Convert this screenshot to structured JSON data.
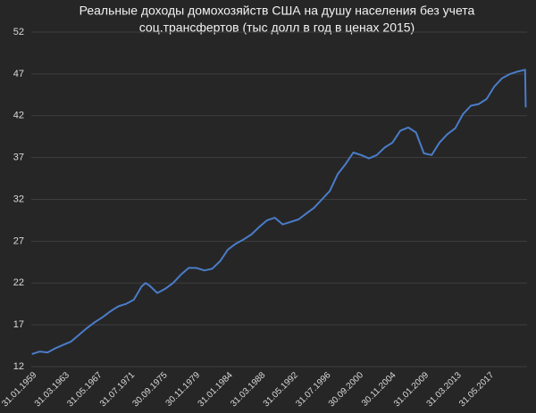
{
  "chart_data": {
    "type": "line",
    "title": [
      "Реальные доходы домохозяйств США на душу населения без учета",
      "соц.трансфертов (тыс долл в год в ценах 2015)"
    ],
    "x": [
      "1959-01",
      "1960-01",
      "1961-01",
      "1962-01",
      "1963-01",
      "1964-01",
      "1965-01",
      "1966-01",
      "1967-01",
      "1968-01",
      "1969-01",
      "1970-01",
      "1971-01",
      "1972-01",
      "1973-01",
      "1973-07",
      "1974-01",
      "1975-01",
      "1976-01",
      "1977-01",
      "1978-01",
      "1979-01",
      "1980-01",
      "1981-01",
      "1982-01",
      "1983-01",
      "1984-01",
      "1985-01",
      "1986-01",
      "1987-01",
      "1988-01",
      "1989-01",
      "1990-01",
      "1991-01",
      "1992-01",
      "1993-01",
      "1994-01",
      "1995-01",
      "1996-01",
      "1997-01",
      "1998-01",
      "1999-01",
      "2000-01",
      "2001-01",
      "2002-01",
      "2003-01",
      "2004-01",
      "2005-01",
      "2006-01",
      "2007-01",
      "2008-01",
      "2009-01",
      "2010-01",
      "2011-01",
      "2012-01",
      "2013-01",
      "2014-01",
      "2015-01",
      "2016-01",
      "2017-01",
      "2018-01",
      "2019-01",
      "2020-01",
      "2021-01",
      "2021-12",
      "2022-01"
    ],
    "series": [
      {
        "name": "Реальные доходы",
        "color": "#4a7cc9",
        "values": [
          13.5,
          13.8,
          13.7,
          14.2,
          14.6,
          15.0,
          15.8,
          16.6,
          17.3,
          17.9,
          18.6,
          19.2,
          19.5,
          20.0,
          21.6,
          22.0,
          21.7,
          20.8,
          21.3,
          22.0,
          23.0,
          23.8,
          23.8,
          23.5,
          23.7,
          24.6,
          26.0,
          26.7,
          27.2,
          27.8,
          28.7,
          29.5,
          29.8,
          29.0,
          29.3,
          29.6,
          30.3,
          31.0,
          32.0,
          33.0,
          35.0,
          36.2,
          37.6,
          37.3,
          36.9,
          37.3,
          38.2,
          38.8,
          40.2,
          40.6,
          40.0,
          37.5,
          37.3,
          38.8,
          39.8,
          40.5,
          42.2,
          43.2,
          43.4,
          44.0,
          45.5,
          46.5,
          47.0,
          47.3,
          47.5,
          43.0
        ]
      }
    ],
    "xlim": [
      "1958-12",
      "2022-03"
    ],
    "xticks": [
      "31.01.1959",
      "31.03.1963",
      "31.05.1967",
      "31.07.1971",
      "30.09.1975",
      "30.11.1979",
      "31.01.1984",
      "31.03.1988",
      "31.05.1992",
      "31.07.1996",
      "30.09.2000",
      "30.11.2004",
      "31.01.2009",
      "31.03.2013",
      "31.05.2017"
    ],
    "ylim": [
      12,
      52
    ],
    "yticks": [
      12,
      17,
      22,
      27,
      32,
      37,
      42,
      47,
      52
    ],
    "grid": true
  }
}
